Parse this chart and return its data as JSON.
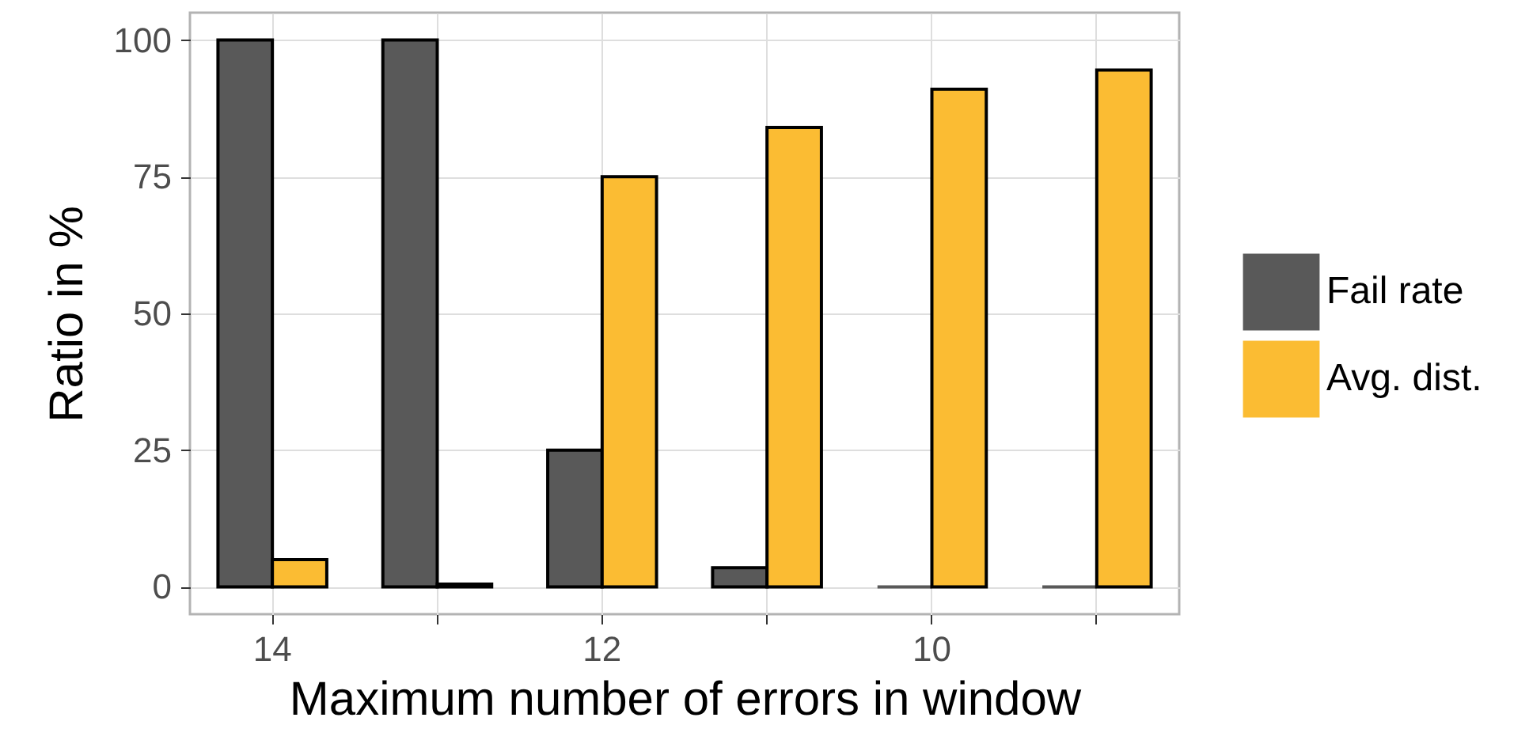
{
  "chart_data": {
    "type": "bar",
    "xlabel": "Maximum number of errors in window",
    "ylabel": "Ratio in %",
    "categories": [
      "14",
      null,
      "12",
      null,
      "10",
      null
    ],
    "series": [
      {
        "name": "Fail rate",
        "color": "#595959",
        "values": [
          100,
          100,
          25,
          3.5,
          0,
          0
        ]
      },
      {
        "name": "Avg. dist.",
        "color": "#fbbc33",
        "values": [
          5,
          0.5,
          75,
          84,
          91,
          94.5
        ]
      }
    ],
    "ylim": [
      -5,
      105
    ],
    "yticks": [
      0,
      25,
      50,
      75,
      100
    ],
    "grid": true,
    "legend": "right"
  }
}
